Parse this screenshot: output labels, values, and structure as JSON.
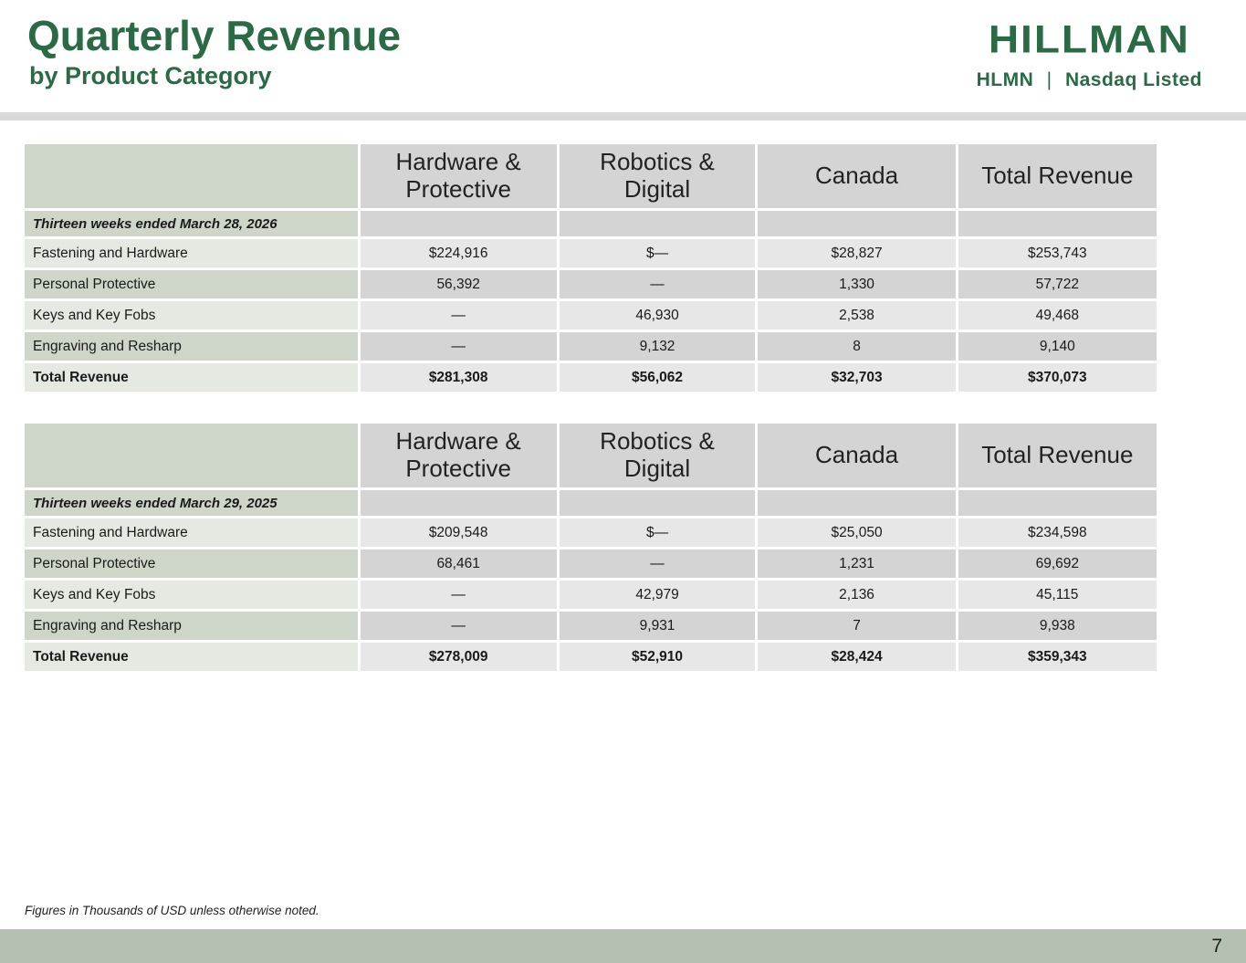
{
  "header": {
    "title": "Quarterly Revenue",
    "subtitle": "by Product Category",
    "logo": {
      "brand": "HILLMAN",
      "ticker": "HLMN",
      "separator": "|",
      "listing": "Nasdaq Listed"
    }
  },
  "tables": [
    {
      "columns": [
        "",
        "Hardware & Protective",
        "Robotics & Digital",
        "Canada",
        "Total Revenue"
      ],
      "period_label": "Thirteen weeks ended March 28, 2026",
      "rows": [
        {
          "label": "Fastening and Hardware",
          "values": [
            "$224,916",
            "$—",
            "$28,827",
            "$253,743"
          ]
        },
        {
          "label": "Personal Protective",
          "values": [
            "56,392",
            "—",
            "1,330",
            "57,722"
          ]
        },
        {
          "label": "Keys and Key Fobs",
          "values": [
            "—",
            "46,930",
            "2,538",
            "49,468"
          ]
        },
        {
          "label": "Engraving and Resharp",
          "values": [
            "—",
            "9,132",
            "8",
            "9,140"
          ]
        }
      ],
      "total_row": {
        "label": "Total Revenue",
        "values": [
          "$281,308",
          "$56,062",
          "$32,703",
          "$370,073"
        ]
      }
    },
    {
      "columns": [
        "",
        "Hardware & Protective",
        "Robotics & Digital",
        "Canada",
        "Total Revenue"
      ],
      "period_label": "Thirteen weeks ended March 29, 2025",
      "rows": [
        {
          "label": "Fastening and Hardware",
          "values": [
            "$209,548",
            "$—",
            "$25,050",
            "$234,598"
          ]
        },
        {
          "label": "Personal Protective",
          "values": [
            "68,461",
            "—",
            "1,231",
            "69,692"
          ]
        },
        {
          "label": "Keys and Key Fobs",
          "values": [
            "—",
            "42,979",
            "2,136",
            "45,115"
          ]
        },
        {
          "label": "Engraving and Resharp",
          "values": [
            "—",
            "9,931",
            "7",
            "9,938"
          ]
        }
      ],
      "total_row": {
        "label": "Total Revenue",
        "values": [
          "$278,009",
          "$52,910",
          "$28,424",
          "$359,343"
        ]
      }
    }
  ],
  "footer": {
    "note": "Figures in Thousands of USD unless otherwise noted.",
    "page_number": "7"
  },
  "colors": {
    "brand_green": "#2a6b46",
    "divider_gray": "#d9d9d9",
    "bottom_bar": "#b6c0b0",
    "cell_gray_dark": "#d4d4d4",
    "cell_gray_light": "#e7e7e7",
    "cell_green_dark": "#cdd6c9",
    "cell_green_light": "#e4eae1"
  }
}
